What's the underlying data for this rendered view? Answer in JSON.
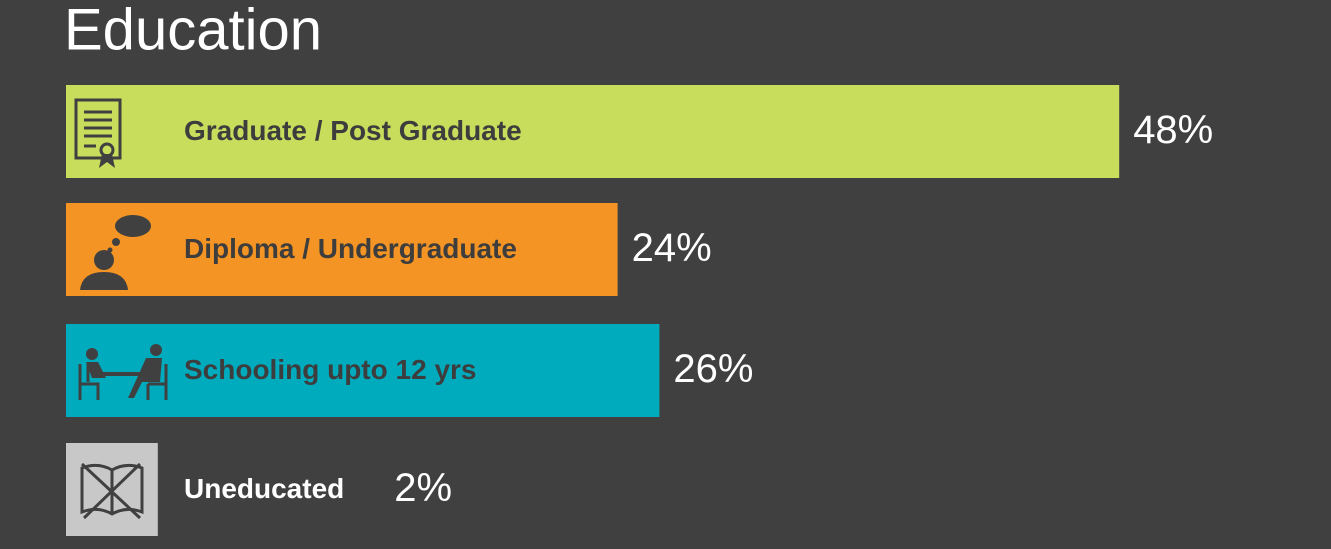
{
  "chart_data": {
    "type": "bar",
    "orientation": "horizontal",
    "title": "Education",
    "categories": [
      "Graduate / Post Graduate",
      "Diploma / Undergraduate",
      "Schooling upto 12 yrs",
      "Uneducated"
    ],
    "values": [
      48,
      24,
      26,
      2
    ],
    "value_labels": [
      "48%",
      "24%",
      "26%",
      "2%"
    ],
    "colors": [
      "#c9dd5d",
      "#f39424",
      "#00abbd",
      "#c8c8c8"
    ]
  }
}
